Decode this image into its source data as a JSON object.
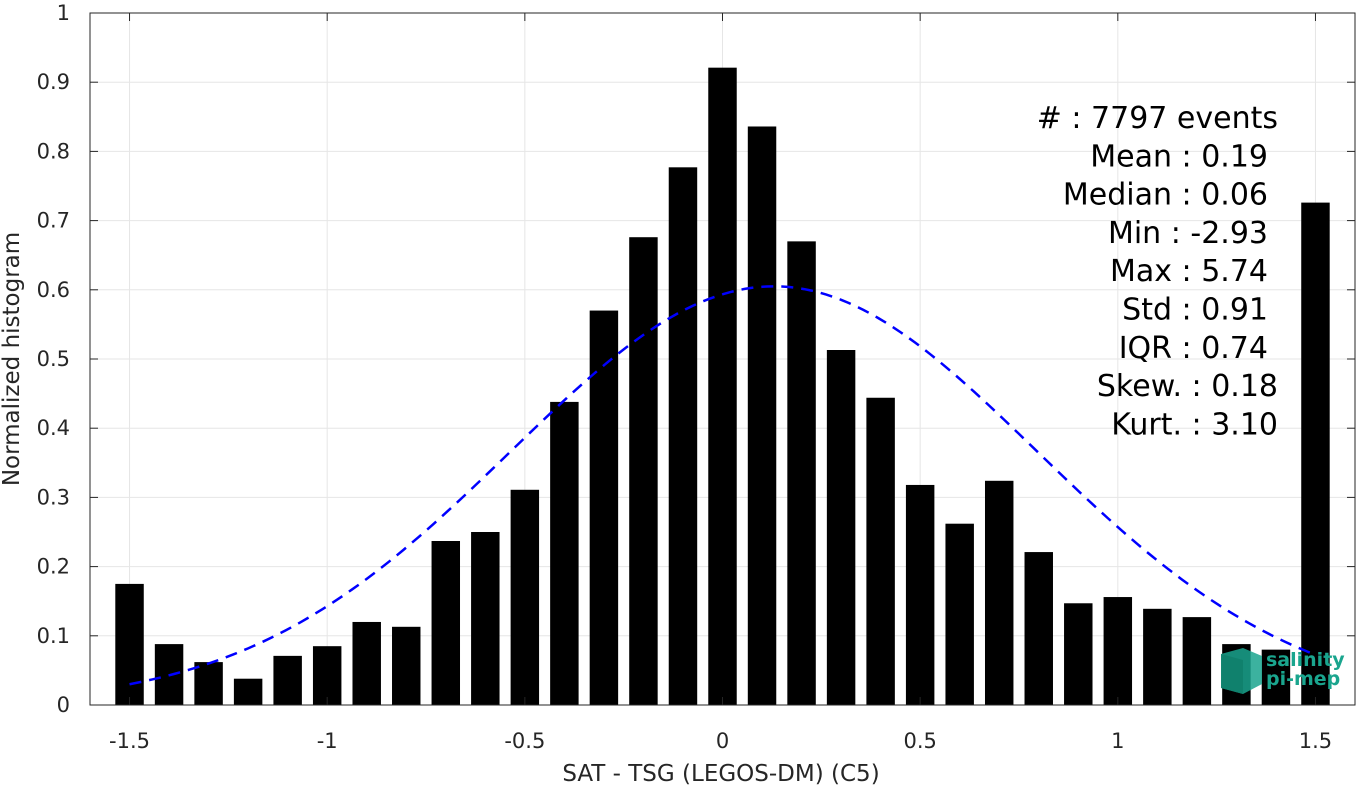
{
  "chart_data": {
    "type": "bar",
    "xlabel": "SAT - TSG (LEGOS-DM) (C5)",
    "ylabel": "Normalized histogram",
    "xlim": [
      -1.6,
      1.6
    ],
    "ylim": [
      0,
      1
    ],
    "xticks": [
      -1.5,
      -1,
      -0.5,
      0,
      0.5,
      1,
      1.5
    ],
    "xtick_labels": [
      "-1.5",
      "-1",
      "-0.5",
      "0",
      "0.5",
      "1",
      "1.5"
    ],
    "yticks": [
      0,
      0.1,
      0.2,
      0.3,
      0.4,
      0.5,
      0.6,
      0.7,
      0.8,
      0.9,
      1
    ],
    "ytick_labels": [
      "0",
      "0.1",
      "0.2",
      "0.3",
      "0.4",
      "0.5",
      "0.6",
      "0.7",
      "0.8",
      "0.9",
      "1"
    ],
    "grid": true,
    "bar_color": "#000000",
    "bin_width": 0.1,
    "bins": {
      "x": [
        -1.5,
        -1.4,
        -1.3,
        -1.2,
        -1.1,
        -1.0,
        -0.9,
        -0.8,
        -0.7,
        -0.6,
        -0.5,
        -0.4,
        -0.3,
        -0.2,
        -0.1,
        0.0,
        0.1,
        0.2,
        0.3,
        0.4,
        0.5,
        0.6,
        0.7,
        0.8,
        0.9,
        1.0,
        1.1,
        1.2,
        1.3,
        1.4,
        1.5
      ],
      "values": [
        0.175,
        0.088,
        0.062,
        0.038,
        0.071,
        0.085,
        0.12,
        0.113,
        0.237,
        0.25,
        0.311,
        0.438,
        0.57,
        0.676,
        0.777,
        0.921,
        0.836,
        0.67,
        0.513,
        0.444,
        0.318,
        0.262,
        0.324,
        0.221,
        0.147,
        0.156,
        0.139,
        0.127,
        0.088,
        0.08,
        0.726
      ]
    },
    "gaussian_fit": {
      "mean": 0.13,
      "std": 0.665,
      "peak": 0.605,
      "x_range": [
        -1.5,
        1.5
      ],
      "color": "#0000ff",
      "style": "dashed"
    },
    "annotations": [
      "#  : 7797 events",
      "Mean : 0.19",
      "Median : 0.06",
      "Min : -2.93",
      "Max : 5.74",
      "Std : 0.91",
      "IQR : 0.74",
      "Skew. : 0.18",
      "Kurt. : 3.10"
    ]
  },
  "logo": {
    "line1": "salinity",
    "line2": "pi-mep",
    "color": "#1aa58e"
  }
}
